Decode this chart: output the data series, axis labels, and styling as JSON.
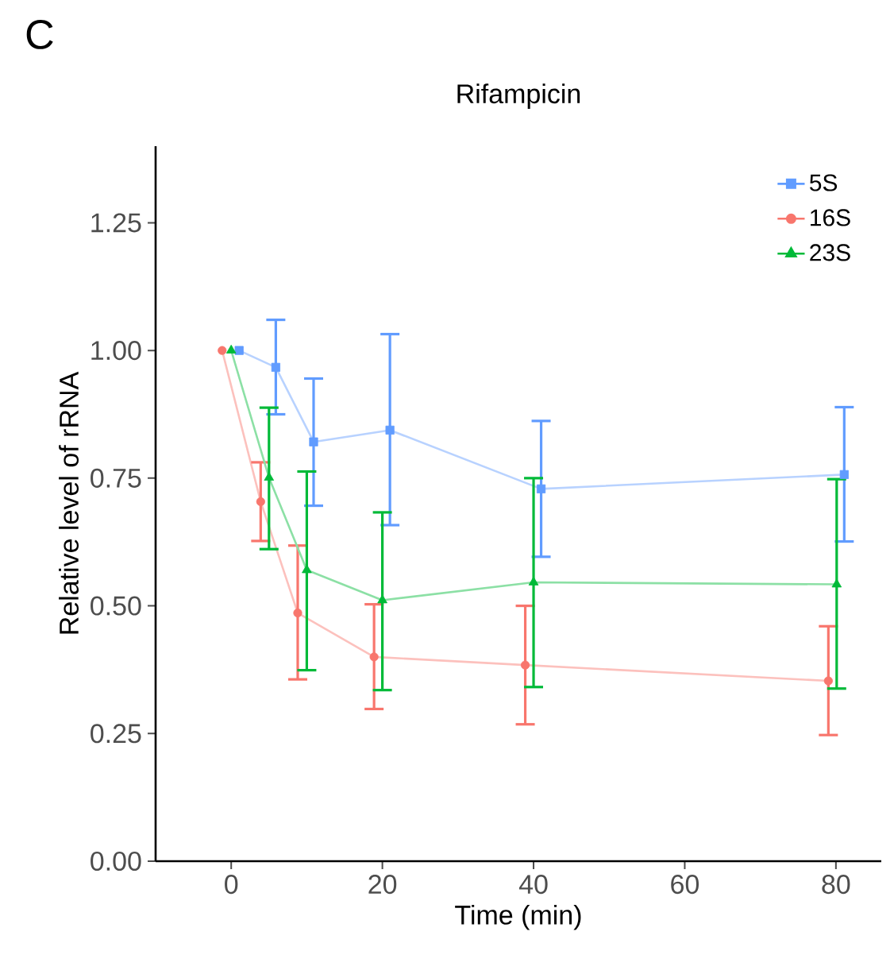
{
  "chart_data": {
    "type": "line",
    "title": "Rifampicin",
    "xlabel": "Time (min)",
    "ylabel": "Relative level of rRNA",
    "annotations": [
      "C"
    ],
    "xlim": [
      -10,
      86
    ],
    "ylim": [
      0,
      1.4
    ],
    "xticks": [
      0,
      20,
      40,
      60,
      80
    ],
    "yticks": [
      {
        "value": 0,
        "label": "0.00"
      },
      {
        "value": 0.25,
        "label": "0.25"
      },
      {
        "value": 0.5,
        "label": "0.50"
      },
      {
        "value": 0.75,
        "label": "0.75"
      },
      {
        "value": 1,
        "label": "1.00"
      },
      {
        "value": 1.25,
        "label": "1.25"
      }
    ],
    "legend": "top right",
    "series": [
      {
        "name": "5S",
        "color": "#619cff",
        "marker": "square",
        "x": [
          1.05,
          5.9,
          10.9,
          21.0,
          41.0,
          81.1
        ],
        "values": [
          1.0,
          0.967,
          0.821,
          0.844,
          0.729,
          0.757
        ],
        "errors": [
          null,
          [
            0.875,
            1.06
          ],
          [
            0.696,
            0.945
          ],
          [
            0.658,
            1.032
          ],
          [
            0.596,
            0.862
          ],
          [
            0.626,
            0.889
          ]
        ]
      },
      {
        "name": "16S",
        "color": "#f8766d",
        "marker": "circle",
        "x": [
          -1.2,
          3.9,
          8.8,
          18.9,
          38.9,
          79.0
        ],
        "values": [
          1.0,
          0.704,
          0.486,
          0.4,
          0.384,
          0.353
        ],
        "errors": [
          null,
          [
            0.627,
            0.781
          ],
          [
            0.356,
            0.618
          ],
          [
            0.298,
            0.503
          ],
          [
            0.268,
            0.5
          ],
          [
            0.247,
            0.46
          ]
        ]
      },
      {
        "name": "23S",
        "color": "#00ba38",
        "marker": "triangle",
        "x": [
          0,
          5.0,
          10.0,
          20.0,
          40.0,
          80.1
        ],
        "values": [
          1.0,
          0.751,
          0.57,
          0.511,
          0.546,
          0.542
        ],
        "errors": [
          null,
          [
            0.611,
            0.888
          ],
          [
            0.374,
            0.763
          ],
          [
            0.335,
            0.683
          ],
          [
            0.341,
            0.75
          ],
          [
            0.338,
            0.748
          ]
        ]
      }
    ]
  }
}
